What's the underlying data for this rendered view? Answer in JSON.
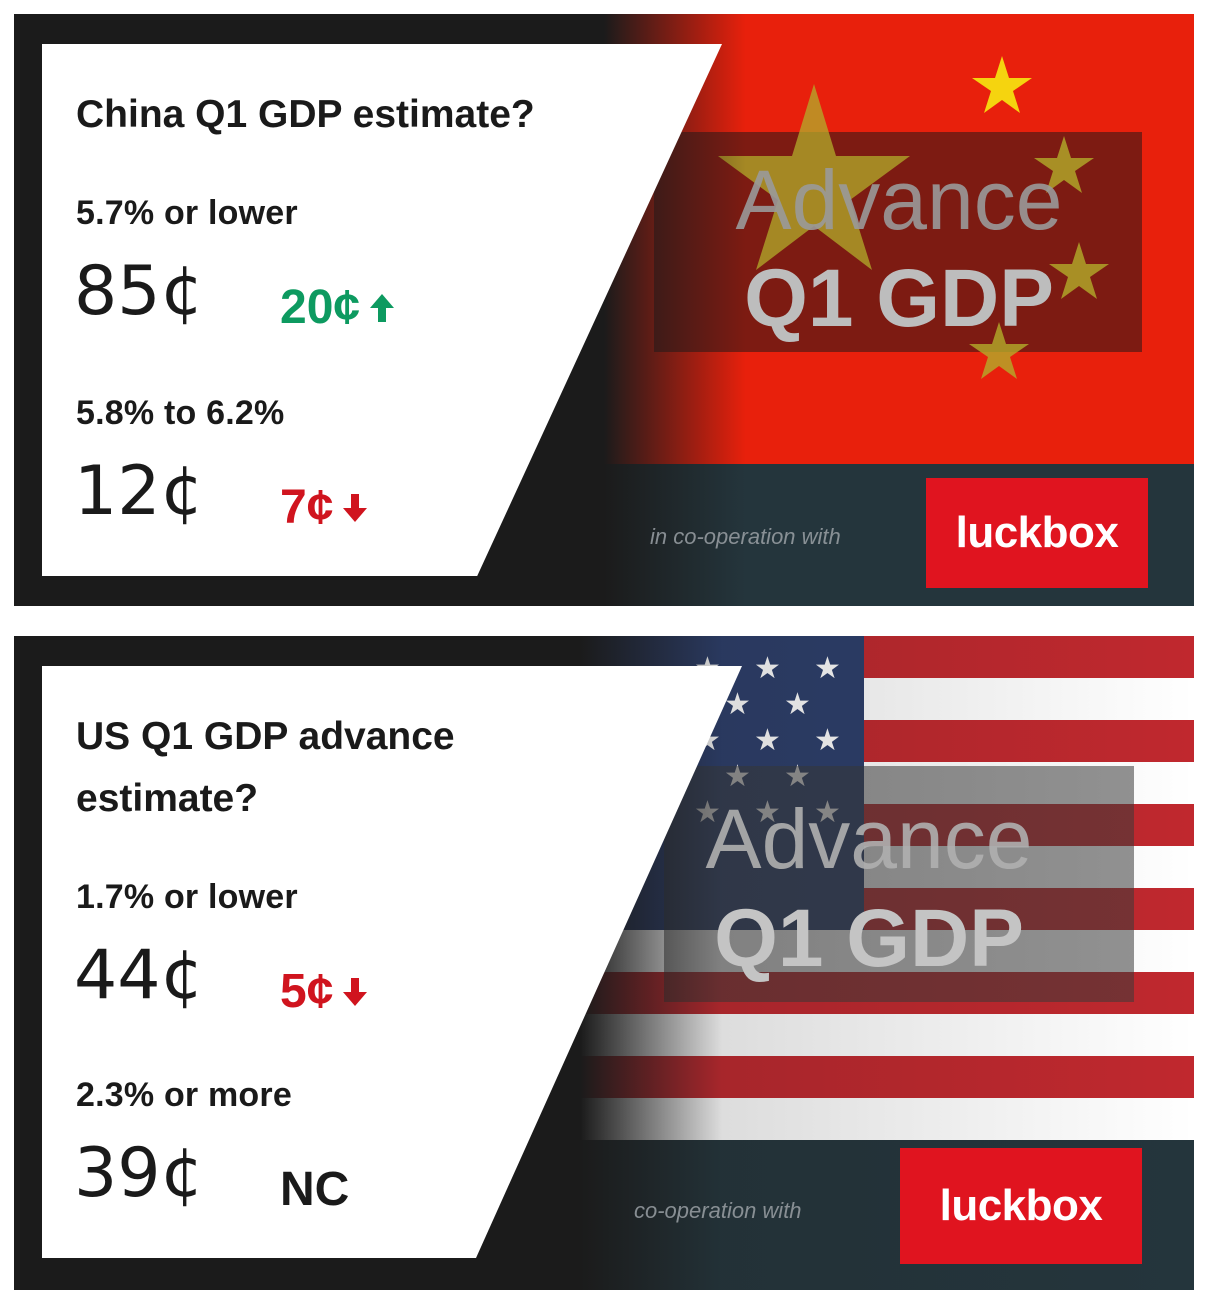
{
  "colors": {
    "up": "#0d9a60",
    "down": "#d0141e",
    "china_red": "#e8200c",
    "star_yellow": "#f5d40f",
    "us_red": "#c0282e",
    "us_blue": "#2c3e6b",
    "luckbox_red": "#e0141f"
  },
  "cards": [
    {
      "question": "China Q1 GDP estimate?",
      "flag": "china-flag",
      "banner": {
        "line1": "Advance",
        "line2": "Q1 GDP"
      },
      "partner_text": "in co-operation with",
      "partner_logo": "luckbox",
      "outcomes": [
        {
          "range": "5.7% or lower",
          "price": "85¢",
          "change": "20¢",
          "direction": "up"
        },
        {
          "range": "5.8% to 6.2%",
          "price": "12¢",
          "change": "7¢",
          "direction": "down"
        }
      ]
    },
    {
      "question": "US Q1 GDP advance estimate?",
      "flag": "us-flag",
      "banner": {
        "line1": "Advance",
        "line2": "Q1 GDP"
      },
      "partner_text": "co-operation with",
      "partner_logo": "luckbox",
      "outcomes": [
        {
          "range": "1.7% or lower",
          "price": "44¢",
          "change": "5¢",
          "direction": "down"
        },
        {
          "range": "2.3% or more",
          "price": "39¢",
          "change": "NC",
          "direction": "none"
        }
      ]
    }
  ]
}
